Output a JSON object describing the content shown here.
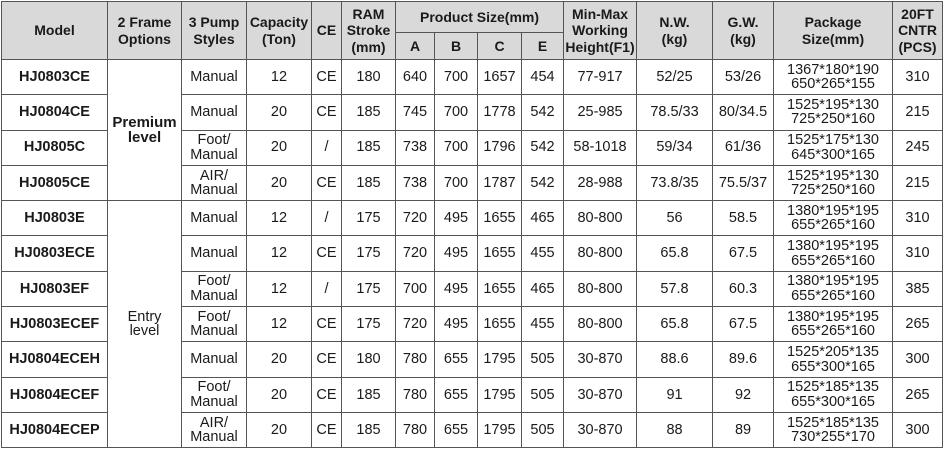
{
  "table": {
    "columns_before": [
      [
        "Model"
      ],
      [
        "2 Frame",
        "Options"
      ],
      [
        "3 Pump",
        "Styles"
      ],
      [
        "Capacity",
        "(Ton)"
      ],
      [
        "CE"
      ],
      [
        "RAM",
        "Stroke",
        "(mm)"
      ]
    ],
    "product_size": {
      "title": "Product Size(mm)",
      "sub": [
        "A",
        "B",
        "C",
        "E"
      ]
    },
    "columns_after": [
      [
        "Min-Max",
        "Working",
        "Height(F1)"
      ],
      [
        "N.W.",
        "(kg)"
      ],
      [
        "G.W.",
        "(kg)"
      ],
      [
        "Package",
        "Size(mm)"
      ],
      [
        "20FT",
        "CNTR",
        "(PCS)"
      ]
    ],
    "groups": [
      {
        "label": [
          "Premium",
          "level"
        ],
        "rows": [
          [
            "HJ0803CE",
            [
              "Manual"
            ],
            "12",
            "CE",
            "180",
            "640",
            "700",
            "1657",
            "454",
            "77-917",
            "52/25",
            "53/26",
            [
              "1367*180*190",
              "650*265*155"
            ],
            "310"
          ],
          [
            "HJ0804CE",
            [
              "Manual"
            ],
            "20",
            "CE",
            "185",
            "745",
            "700",
            "1778",
            "542",
            "25-985",
            "78.5/33",
            "80/34.5",
            [
              "1525*195*130",
              "725*250*160"
            ],
            "215"
          ],
          [
            "HJ0805C",
            [
              "Foot/",
              "Manual"
            ],
            "20",
            "/",
            "185",
            "738",
            "700",
            "1796",
            "542",
            "58-1018",
            "59/34",
            "61/36",
            [
              "1525*175*130",
              "645*300*165"
            ],
            "245"
          ],
          [
            "HJ0805CE",
            [
              "AIR/",
              "Manual"
            ],
            "20",
            "CE",
            "185",
            "738",
            "700",
            "1787",
            "542",
            "28-988",
            "73.8/35",
            "75.5/37",
            [
              "1525*195*130",
              "725*250*160"
            ],
            "215"
          ]
        ]
      },
      {
        "label": [
          "Entry",
          "level"
        ],
        "rows": [
          [
            "HJ0803E",
            [
              "Manual"
            ],
            "12",
            "/",
            "175",
            "720",
            "495",
            "1655",
            "465",
            "80-800",
            "56",
            "58.5",
            [
              "1380*195*195",
              "655*265*160"
            ],
            "310"
          ],
          [
            "HJ0803ECE",
            [
              "Manual"
            ],
            "12",
            "CE",
            "175",
            "720",
            "495",
            "1655",
            "455",
            "80-800",
            "65.8",
            "67.5",
            [
              "1380*195*195",
              "655*265*160"
            ],
            "310"
          ],
          [
            "HJ0803EF",
            [
              "Foot/",
              "Manual"
            ],
            "12",
            "/",
            "175",
            "700",
            "495",
            "1655",
            "465",
            "80-800",
            "57.8",
            "60.3",
            [
              "1380*195*195",
              "655*265*160"
            ],
            "385"
          ],
          [
            "HJ0803ECEF",
            [
              "Foot/",
              "Manual"
            ],
            "12",
            "CE",
            "175",
            "720",
            "495",
            "1655",
            "455",
            "80-800",
            "65.8",
            "67.5",
            [
              "1380*195*195",
              "655*265*160"
            ],
            "265"
          ],
          [
            "HJ0804ECEH",
            [
              "Manual"
            ],
            "20",
            "CE",
            "180",
            "780",
            "655",
            "1795",
            "505",
            "30-870",
            "88.6",
            "89.6",
            [
              "1525*205*135",
              "655*300*165"
            ],
            "300"
          ],
          [
            "HJ0804ECEF",
            [
              "Foot/",
              "Manual"
            ],
            "20",
            "CE",
            "185",
            "780",
            "655",
            "1795",
            "505",
            "30-870",
            "91",
            "92",
            [
              "1525*185*135",
              "655*300*165"
            ],
            "265"
          ],
          [
            "HJ0804ECEP",
            [
              "AIR/",
              "Manual"
            ],
            "20",
            "CE",
            "185",
            "780",
            "655",
            "1795",
            "505",
            "30-870",
            "88",
            "89",
            [
              "1525*185*135",
              "730*255*170"
            ],
            "300"
          ]
        ]
      }
    ]
  }
}
